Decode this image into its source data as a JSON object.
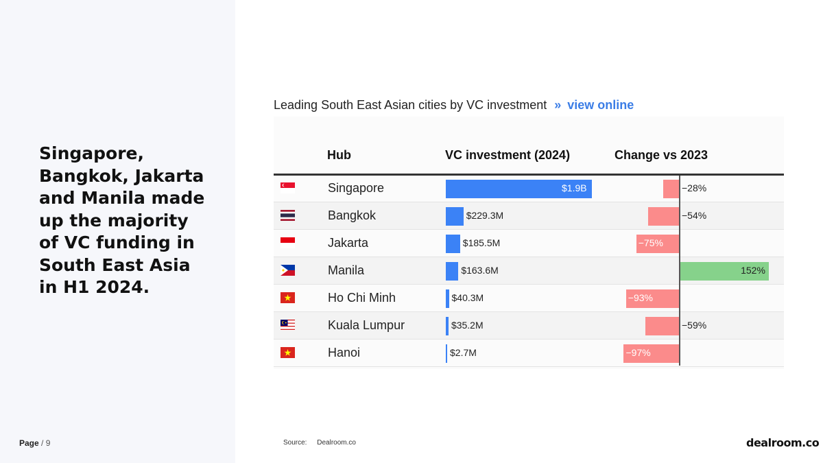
{
  "headline": "Singapore, Bangkok, Jakarta and Manila made up the majority of VC funding in South East Asia in H1 2024.",
  "page": {
    "label": "Page",
    "separator": "/",
    "number": "9"
  },
  "chart_title": {
    "text": "Leading South East Asian cities by VC investment",
    "arrow": "»",
    "link": "view online"
  },
  "source": {
    "label": "Source:",
    "value": "Dealroom.co"
  },
  "logo": "dealroom.co",
  "colors": {
    "investment_bar": "#3b82f6",
    "negative_change": "#fb8b8b",
    "positive_change": "#86d28b"
  },
  "chart_data": {
    "type": "table",
    "columns": [
      "Hub",
      "VC investment (2024)",
      "Change vs 2023"
    ],
    "rows": [
      {
        "hub": "Singapore",
        "flag": "singapore-flag",
        "investment_usd_m": 1900,
        "investment_label": "$1.9B",
        "change_pct": -28,
        "change_label": "−28%"
      },
      {
        "hub": "Bangkok",
        "flag": "thailand-flag",
        "investment_usd_m": 229.3,
        "investment_label": "$229.3M",
        "change_pct": -54,
        "change_label": "−54%"
      },
      {
        "hub": "Jakarta",
        "flag": "indonesia-flag",
        "investment_usd_m": 185.5,
        "investment_label": "$185.5M",
        "change_pct": -75,
        "change_label": "−75%"
      },
      {
        "hub": "Manila",
        "flag": "philippines-flag",
        "investment_usd_m": 163.6,
        "investment_label": "$163.6M",
        "change_pct": 152,
        "change_label": "152%"
      },
      {
        "hub": "Ho Chi Minh",
        "flag": "vietnam-flag",
        "investment_usd_m": 40.3,
        "investment_label": "$40.3M",
        "change_pct": -93,
        "change_label": "−93%"
      },
      {
        "hub": "Kuala Lumpur",
        "flag": "malaysia-flag",
        "investment_usd_m": 35.2,
        "investment_label": "$35.2M",
        "change_pct": -59,
        "change_label": "−59%"
      },
      {
        "hub": "Hanoi",
        "flag": "vietnam-flag",
        "investment_usd_m": 2.7,
        "investment_label": "$2.7M",
        "change_pct": -97,
        "change_label": "−97%"
      }
    ]
  }
}
